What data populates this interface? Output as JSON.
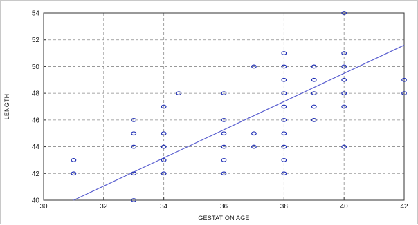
{
  "chart_data": {
    "type": "scatter",
    "title": "",
    "xlabel": "GESTATION AGE",
    "ylabel": "LENGTH",
    "xlim": [
      30,
      42
    ],
    "ylim": [
      40,
      54
    ],
    "xticks": [
      30,
      32,
      34,
      36,
      38,
      40,
      42
    ],
    "yticks": [
      40,
      42,
      44,
      46,
      48,
      50,
      52,
      54
    ],
    "grid": true,
    "points": [
      {
        "x": 31,
        "y": 43
      },
      {
        "x": 31,
        "y": 42
      },
      {
        "x": 33,
        "y": 46
      },
      {
        "x": 33,
        "y": 45
      },
      {
        "x": 33,
        "y": 44
      },
      {
        "x": 33,
        "y": 42
      },
      {
        "x": 33,
        "y": 40
      },
      {
        "x": 34,
        "y": 47
      },
      {
        "x": 34,
        "y": 45
      },
      {
        "x": 34,
        "y": 44
      },
      {
        "x": 34,
        "y": 43
      },
      {
        "x": 34,
        "y": 42
      },
      {
        "x": 34.5,
        "y": 48
      },
      {
        "x": 36,
        "y": 48
      },
      {
        "x": 36,
        "y": 46
      },
      {
        "x": 36,
        "y": 45
      },
      {
        "x": 36,
        "y": 44
      },
      {
        "x": 36,
        "y": 43
      },
      {
        "x": 36,
        "y": 42
      },
      {
        "x": 37,
        "y": 50
      },
      {
        "x": 37,
        "y": 45
      },
      {
        "x": 37,
        "y": 44
      },
      {
        "x": 38,
        "y": 51
      },
      {
        "x": 38,
        "y": 50
      },
      {
        "x": 38,
        "y": 49
      },
      {
        "x": 38,
        "y": 48
      },
      {
        "x": 38,
        "y": 47
      },
      {
        "x": 38,
        "y": 46
      },
      {
        "x": 38,
        "y": 45
      },
      {
        "x": 38,
        "y": 44
      },
      {
        "x": 38,
        "y": 43
      },
      {
        "x": 38,
        "y": 42
      },
      {
        "x": 39,
        "y": 50
      },
      {
        "x": 39,
        "y": 49
      },
      {
        "x": 39,
        "y": 48
      },
      {
        "x": 39,
        "y": 47
      },
      {
        "x": 39,
        "y": 46
      },
      {
        "x": 40,
        "y": 54
      },
      {
        "x": 40,
        "y": 51
      },
      {
        "x": 40,
        "y": 50
      },
      {
        "x": 40,
        "y": 49
      },
      {
        "x": 40,
        "y": 48
      },
      {
        "x": 40,
        "y": 47
      },
      {
        "x": 40,
        "y": 44
      },
      {
        "x": 42,
        "y": 49
      },
      {
        "x": 42,
        "y": 48
      }
    ],
    "regression_line": {
      "x1": 31,
      "y1": 40,
      "x2": 42,
      "y2": 51.6
    },
    "colors": {
      "marker": "#1f2fb5",
      "line": "#5a5fd0",
      "grid": "#8a8a8a",
      "axis": "#333333"
    }
  }
}
